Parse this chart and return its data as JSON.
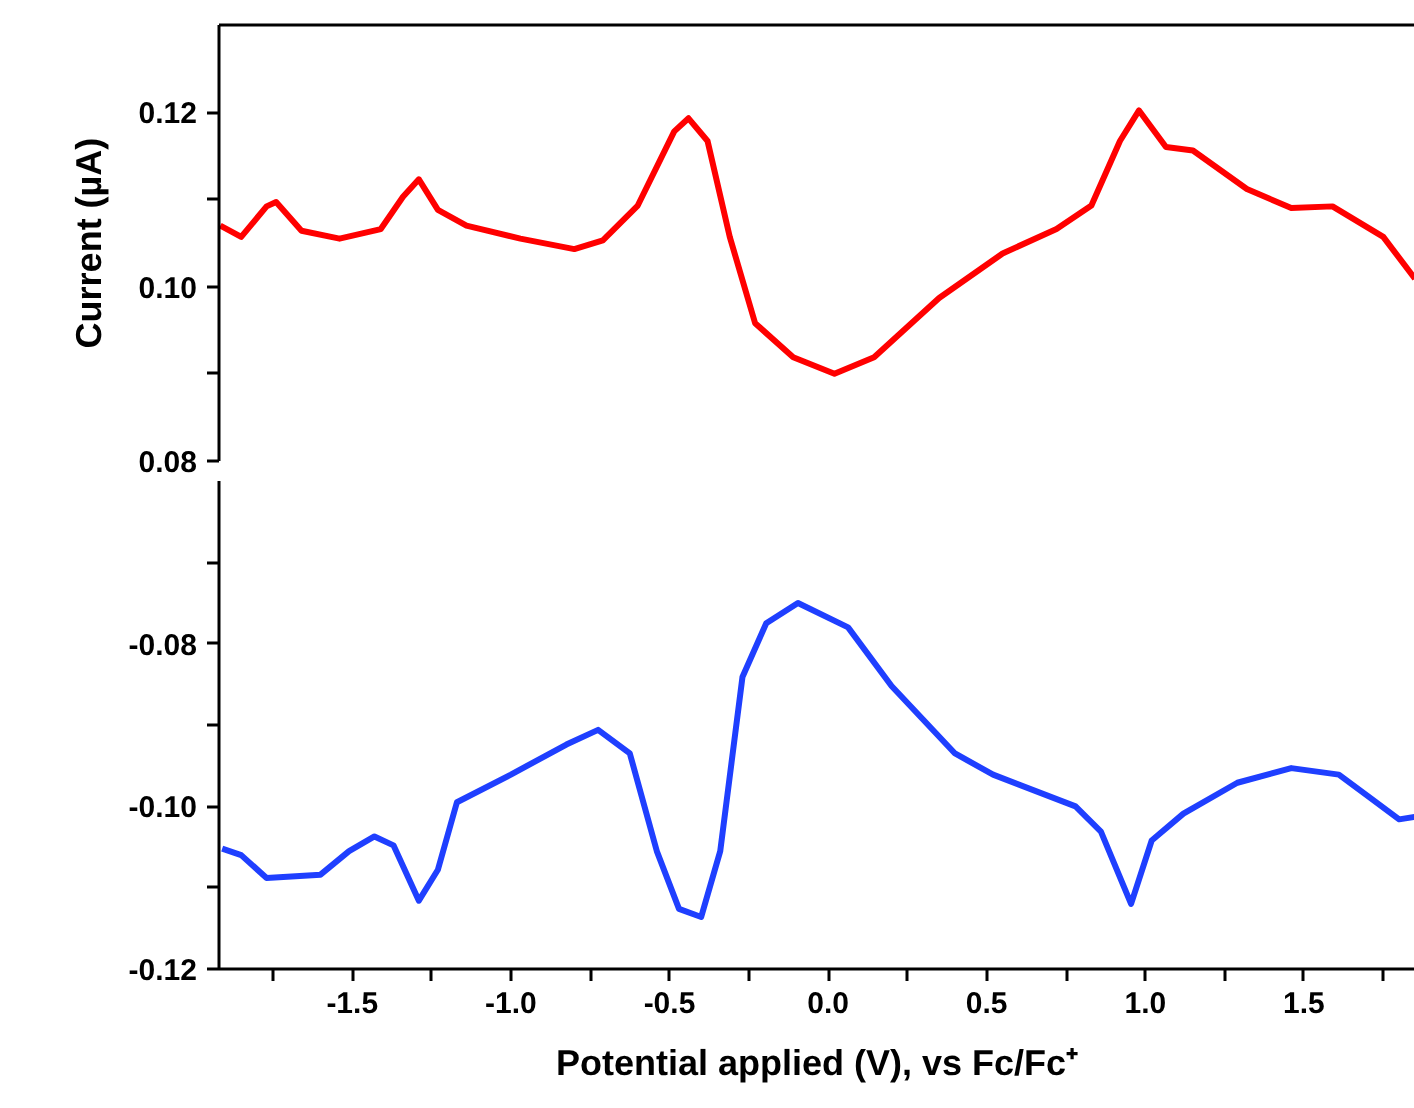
{
  "chart_data": [
    {
      "type": "line",
      "ylabel": "Current (µA)",
      "tick_labels": "y",
      "grid": false,
      "line_style": "solid",
      "marker": "none",
      "xlim": [
        -1.92,
        1.85
      ],
      "ylim": [
        0.08,
        0.13
      ],
      "yticks": [
        0.08,
        {
          "value": 0.09,
          "label": null
        },
        {
          "value": 0.1,
          "label": "0.10"
        },
        {
          "value": 0.11,
          "label": null
        },
        0.12
      ],
      "series": [
        {
          "color": "#ff0000",
          "x": [
            -1.916,
            -1.85,
            -1.77,
            -1.74,
            -1.66,
            -1.54,
            -1.41,
            -1.34,
            -1.29,
            -1.23,
            -1.14,
            -0.97,
            -0.8,
            -0.71,
            -0.6,
            -0.485,
            -0.44,
            -0.38,
            -0.31,
            -0.23,
            -0.11,
            0.02,
            0.145,
            0.35,
            0.55,
            0.72,
            0.83,
            0.92,
            0.98,
            1.065,
            1.15,
            1.32,
            1.46,
            1.59,
            1.75,
            1.85
          ],
          "values": [
            0.107,
            0.1057,
            0.1092,
            0.1097,
            0.1064,
            0.1055,
            0.1066,
            0.1103,
            0.1123,
            0.1088,
            0.107,
            0.1055,
            0.1043,
            0.1053,
            0.1093,
            0.1178,
            0.1193,
            0.1167,
            0.1057,
            0.0958,
            0.0919,
            0.09,
            0.0919,
            0.0987,
            0.1038,
            0.1066,
            0.1093,
            0.1167,
            0.1202,
            0.116,
            0.1156,
            0.1112,
            0.109,
            0.1092,
            0.1057,
            0.1009
          ]
        }
      ]
    },
    {
      "type": "line",
      "xlabel": "Potential applied (V), vs Fc/Fc⁺",
      "grid": false,
      "line_style": "solid",
      "marker": "none",
      "xlim": [
        -1.92,
        1.85
      ],
      "ylim": [
        -0.12,
        -0.06
      ],
      "xticks": [
        {
          "value": -1.75,
          "label": null
        },
        {
          "value": -1.5,
          "label": "-1.5"
        },
        {
          "value": -1.25,
          "label": null
        },
        {
          "value": -1.0,
          "label": "-1.0"
        },
        {
          "value": -0.75,
          "label": null
        },
        {
          "value": -0.5,
          "label": "-0.5"
        },
        {
          "value": -0.25,
          "label": null
        },
        {
          "value": 0.0,
          "label": "0.0"
        },
        {
          "value": 0.25,
          "label": null
        },
        0.5,
        {
          "value": 0.75,
          "label": null
        },
        {
          "value": 1.0,
          "label": "1.0"
        },
        {
          "value": 1.25,
          "label": null
        },
        1.5,
        {
          "value": 1.75,
          "label": null
        }
      ],
      "yticks": [
        {
          "value": -0.12,
          "label": "-0.12"
        },
        {
          "value": -0.11,
          "label": null
        },
        {
          "value": -0.1,
          "label": "-0.10"
        },
        {
          "value": -0.09,
          "label": null
        },
        {
          "value": -0.08,
          "label": "-0.08"
        },
        {
          "value": -0.07,
          "label": null
        }
      ],
      "series": [
        {
          "color": "#1f3fff",
          "x": [
            -1.91,
            -1.85,
            -1.77,
            -1.6,
            -1.51,
            -1.43,
            -1.37,
            -1.29,
            -1.23,
            -1.17,
            -1.0,
            -0.825,
            -0.725,
            -0.625,
            -0.54,
            -0.47,
            -0.4,
            -0.34,
            -0.27,
            -0.195,
            -0.095,
            0.063,
            0.2,
            0.4,
            0.52,
            0.78,
            0.86,
            0.955,
            1.02,
            1.12,
            1.29,
            1.46,
            1.61,
            1.71,
            1.8,
            1.85
          ],
          "values": [
            -0.1052,
            -0.106,
            -0.1088,
            -0.1084,
            -0.1055,
            -0.1037,
            -0.1048,
            -0.1116,
            -0.1078,
            -0.0995,
            -0.0961,
            -0.0924,
            -0.0906,
            -0.0935,
            -0.1055,
            -0.1126,
            -0.1136,
            -0.1055,
            -0.0841,
            -0.0775,
            -0.075,
            -0.078,
            -0.0852,
            -0.0935,
            -0.0961,
            -0.1,
            -0.1031,
            -0.112,
            -0.1042,
            -0.1009,
            -0.0971,
            -0.0953,
            -0.0961,
            -0.099,
            -0.1016,
            -0.1013
          ]
        }
      ]
    }
  ]
}
